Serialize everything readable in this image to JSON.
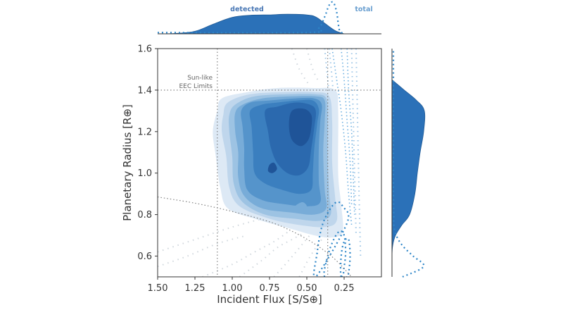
{
  "chart_data": {
    "type": "heatmap",
    "subtype": "joint-kde-with-marginals",
    "title": "",
    "xlabel": "Incident Flux [S/S⊕]",
    "ylabel": "Planetary Radius [R⊕]",
    "xlim": [
      1.5,
      0.0
    ],
    "ylim": [
      0.5,
      1.6
    ],
    "x_inverted": true,
    "grid": false,
    "x_ticks": [
      1.5,
      1.25,
      1.0,
      0.75,
      0.5,
      0.25
    ],
    "x_tick_labels": [
      "1.50",
      "1.25",
      "1.00",
      "0.75",
      "0.50",
      "0.25"
    ],
    "y_ticks": [
      0.6,
      0.8,
      1.0,
      1.2,
      1.4,
      1.6
    ],
    "y_tick_labels": [
      "0.6",
      "0.8",
      "1.0",
      "1.2",
      "1.4",
      "1.6"
    ],
    "annotation": {
      "lines": [
        "Sun-like",
        "EEC Limits"
      ],
      "eec_flux_bounds": [
        1.1,
        0.36
      ],
      "eec_radius_upper": 1.4,
      "eec_lower_boundary_curve": [
        [
          1.5,
          0.885
        ],
        [
          1.25,
          0.855
        ],
        [
          1.0,
          0.815
        ],
        [
          0.75,
          0.765
        ],
        [
          0.6,
          0.72
        ],
        [
          0.45,
          0.66
        ],
        [
          0.32,
          0.59
        ],
        [
          0.2,
          0.5
        ]
      ]
    },
    "series": [
      {
        "name": "detected",
        "style": "filled-kde",
        "color": "#2b71b8",
        "levels": [
          {
            "level": 1,
            "color": "#dde9f5",
            "polygon": [
              [
                1.1,
                1.3
              ],
              [
                1.07,
                1.36
              ],
              [
                0.9,
                1.39
              ],
              [
                0.7,
                1.41
              ],
              [
                0.45,
                1.41
              ],
              [
                0.31,
                1.4
              ],
              [
                0.29,
                1.3
              ],
              [
                0.29,
                1.0
              ],
              [
                0.27,
                0.85
              ],
              [
                0.26,
                0.72
              ],
              [
                0.33,
                0.69
              ],
              [
                0.45,
                0.7
              ],
              [
                0.6,
                0.73
              ],
              [
                0.85,
                0.78
              ],
              [
                1.03,
                0.83
              ],
              [
                1.08,
                0.93
              ],
              [
                1.11,
                1.08
              ],
              [
                1.13,
                1.2
              ]
            ]
          },
          {
            "level": 2,
            "color": "#bfd6ec",
            "polygon": [
              [
                1.06,
                1.28
              ],
              [
                1.03,
                1.34
              ],
              [
                0.88,
                1.38
              ],
              [
                0.65,
                1.39
              ],
              [
                0.45,
                1.39
              ],
              [
                0.35,
                1.37
              ],
              [
                0.33,
                1.25
              ],
              [
                0.33,
                1.05
              ],
              [
                0.31,
                0.88
              ],
              [
                0.3,
                0.77
              ],
              [
                0.38,
                0.74
              ],
              [
                0.55,
                0.75
              ],
              [
                0.75,
                0.78
              ],
              [
                0.95,
                0.84
              ],
              [
                1.02,
                0.93
              ],
              [
                1.04,
                1.08
              ],
              [
                1.07,
                1.2
              ]
            ]
          },
          {
            "level": 3,
            "color": "#9dc3e3",
            "polygon": [
              [
                1.02,
                1.28
              ],
              [
                0.98,
                1.33
              ],
              [
                0.85,
                1.37
              ],
              [
                0.62,
                1.38
              ],
              [
                0.45,
                1.38
              ],
              [
                0.37,
                1.36
              ],
              [
                0.36,
                1.25
              ],
              [
                0.36,
                1.07
              ],
              [
                0.35,
                0.9
              ],
              [
                0.34,
                0.8
              ],
              [
                0.42,
                0.77
              ],
              [
                0.58,
                0.78
              ],
              [
                0.78,
                0.8
              ],
              [
                0.93,
                0.86
              ],
              [
                0.99,
                0.95
              ],
              [
                1.0,
                1.08
              ],
              [
                1.02,
                1.2
              ]
            ]
          },
          {
            "level": 4,
            "color": "#78acd8",
            "polygon": [
              [
                0.98,
                1.29
              ],
              [
                0.93,
                1.33
              ],
              [
                0.8,
                1.36
              ],
              [
                0.6,
                1.37
              ],
              [
                0.44,
                1.37
              ],
              [
                0.38,
                1.35
              ],
              [
                0.38,
                1.25
              ],
              [
                0.39,
                1.1
              ],
              [
                0.38,
                0.92
              ],
              [
                0.37,
                0.83
              ],
              [
                0.45,
                0.8
              ],
              [
                0.6,
                0.81
              ],
              [
                0.8,
                0.83
              ],
              [
                0.92,
                0.89
              ],
              [
                0.96,
                0.98
              ],
              [
                0.96,
                1.1
              ],
              [
                0.98,
                1.2
              ]
            ]
          },
          {
            "level": 5,
            "color": "#5594cb",
            "polygon": [
              [
                0.94,
                1.3
              ],
              [
                0.88,
                1.34
              ],
              [
                0.75,
                1.35
              ],
              [
                0.58,
                1.36
              ],
              [
                0.45,
                1.36
              ],
              [
                0.4,
                1.33
              ],
              [
                0.41,
                1.25
              ],
              [
                0.42,
                1.12
              ],
              [
                0.42,
                0.96
              ],
              [
                0.41,
                0.86
              ],
              [
                0.5,
                0.84
              ],
              [
                0.65,
                0.85
              ],
              [
                0.8,
                0.87
              ],
              [
                0.9,
                0.92
              ],
              [
                0.92,
                1.02
              ],
              [
                0.92,
                1.12
              ],
              [
                0.93,
                1.22
              ]
            ]
          },
          {
            "level": 6,
            "color": "#3b7fbf",
            "polygon": [
              [
                0.88,
                1.3
              ],
              [
                0.8,
                1.33
              ],
              [
                0.7,
                1.34
              ],
              [
                0.56,
                1.35
              ],
              [
                0.46,
                1.35
              ],
              [
                0.42,
                1.31
              ],
              [
                0.43,
                1.24
              ],
              [
                0.45,
                1.12
              ],
              [
                0.46,
                1.0
              ],
              [
                0.47,
                0.92
              ],
              [
                0.55,
                0.9
              ],
              [
                0.67,
                0.92
              ],
              [
                0.78,
                0.95
              ],
              [
                0.85,
                1.0
              ],
              [
                0.86,
                1.1
              ],
              [
                0.87,
                1.22
              ]
            ]
          },
          {
            "level": 7,
            "color": "#2b69ae",
            "polygon": [
              [
                0.78,
                1.3
              ],
              [
                0.7,
                1.32
              ],
              [
                0.58,
                1.34
              ],
              [
                0.48,
                1.33
              ],
              [
                0.44,
                1.3
              ],
              [
                0.45,
                1.22
              ],
              [
                0.47,
                1.12
              ],
              [
                0.49,
                1.03
              ],
              [
                0.55,
                0.99
              ],
              [
                0.63,
                1.0
              ],
              [
                0.7,
                1.05
              ],
              [
                0.74,
                1.12
              ],
              [
                0.76,
                1.2
              ]
            ]
          },
          {
            "level": 8,
            "color": "#1f5498",
            "polygon": [
              [
                0.6,
                1.3
              ],
              [
                0.52,
                1.31
              ],
              [
                0.47,
                1.28
              ],
              [
                0.47,
                1.22
              ],
              [
                0.49,
                1.16
              ],
              [
                0.54,
                1.13
              ],
              [
                0.6,
                1.16
              ],
              [
                0.62,
                1.23
              ]
            ]
          },
          {
            "level": 8,
            "color": "#1f5498",
            "polygon": [
              [
                0.75,
                1.04
              ],
              [
                0.72,
                1.05
              ],
              [
                0.7,
                1.02
              ],
              [
                0.73,
                1.0
              ],
              [
                0.76,
                1.01
              ]
            ]
          },
          {
            "level": 4,
            "color": "#78acd8",
            "polygon": [
              [
                0.58,
                0.84
              ],
              [
                0.53,
                0.86
              ],
              [
                0.5,
                0.84
              ],
              [
                0.53,
                0.82
              ],
              [
                0.57,
                0.82
              ]
            ]
          }
        ]
      },
      {
        "name": "total",
        "style": "dotted-kde",
        "color": "#2e86c8",
        "contours": [
          [
            [
              0.38,
              0.5
            ],
            [
              0.36,
              0.6
            ],
            [
              0.32,
              0.68
            ],
            [
              0.28,
              0.72
            ],
            [
              0.25,
              0.7
            ],
            [
              0.24,
              0.62
            ],
            [
              0.25,
              0.55
            ],
            [
              0.27,
              0.5
            ]
          ],
          [
            [
              0.27,
              0.5
            ],
            [
              0.27,
              0.6
            ],
            [
              0.25,
              0.67
            ],
            [
              0.22,
              0.68
            ],
            [
              0.21,
              0.6
            ],
            [
              0.22,
              0.52
            ],
            [
              0.23,
              0.5
            ]
          ],
          [
            [
              0.44,
              0.5
            ],
            [
              0.43,
              0.62
            ],
            [
              0.4,
              0.74
            ],
            [
              0.35,
              0.82
            ],
            [
              0.3,
              0.86
            ],
            [
              0.26,
              0.84
            ],
            [
              0.23,
              0.76
            ]
          ],
          [
            [
              0.33,
              1.6
            ],
            [
              0.3,
              1.45
            ],
            [
              0.27,
              1.3
            ],
            [
              0.24,
              1.1
            ],
            [
              0.22,
              0.9
            ],
            [
              0.2,
              0.75
            ]
          ],
          [
            [
              0.27,
              1.6
            ],
            [
              0.25,
              1.45
            ],
            [
              0.23,
              1.25
            ],
            [
              0.21,
              1.05
            ],
            [
              0.2,
              0.85
            ]
          ],
          [
            [
              0.23,
              1.6
            ],
            [
              0.22,
              1.4
            ],
            [
              0.2,
              1.2
            ],
            [
              0.19,
              1.0
            ],
            [
              0.18,
              0.8
            ]
          ]
        ]
      }
    ],
    "marginal_top": {
      "x": [
        1.5,
        1.38,
        1.25,
        1.13,
        1.0,
        0.88,
        0.75,
        0.63,
        0.5,
        0.44,
        0.38,
        0.31,
        0.25
      ],
      "detected_density": [
        0.0,
        0.02,
        0.12,
        0.45,
        0.78,
        0.88,
        0.9,
        0.93,
        0.9,
        0.8,
        0.5,
        0.15,
        0.0
      ],
      "total_x": [
        1.5,
        0.5,
        0.42,
        0.38,
        0.36,
        0.34,
        0.32,
        0.3,
        0.29,
        0.28,
        0.26,
        0.25
      ],
      "total_density": [
        0.04,
        0.04,
        0.18,
        0.55,
        0.82,
        1.0,
        1.0,
        0.7,
        0.35,
        0.1,
        0.02,
        0.0
      ]
    },
    "marginal_right": {
      "y": [
        0.5,
        0.6,
        0.65,
        0.7,
        0.75,
        0.8,
        0.9,
        1.0,
        1.1,
        1.2,
        1.3,
        1.35,
        1.4,
        1.45
      ],
      "detected_density": [
        0.0,
        0.0,
        0.02,
        0.1,
        0.28,
        0.5,
        0.65,
        0.72,
        0.8,
        0.9,
        0.92,
        0.7,
        0.35,
        0.0
      ],
      "total_y": [
        0.5,
        0.55,
        0.6,
        0.65,
        0.7,
        0.75,
        0.8,
        0.9,
        1.0,
        1.2,
        1.4,
        1.6
      ],
      "total_density": [
        0.3,
        0.9,
        0.6,
        0.3,
        0.12,
        0.05,
        0.05,
        0.04,
        0.04,
        0.04,
        0.04,
        0.04
      ]
    },
    "legend": [
      {
        "label": "detected",
        "color": "#4a78b5"
      },
      {
        "label": "total",
        "color": "#6a9fd0"
      }
    ]
  }
}
